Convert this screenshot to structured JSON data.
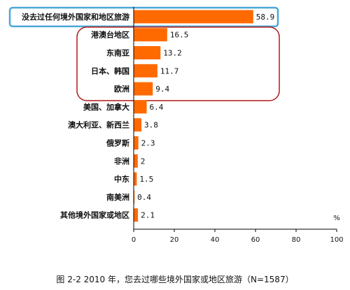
{
  "chart_data": {
    "type": "bar",
    "orientation": "horizontal",
    "categories": [
      "没去过任何境外国家和地区旅游",
      "港澳台地区",
      "东南亚",
      "日本、韩国",
      "欧洲",
      "美国、加拿大",
      "澳大利亚、新西兰",
      "俄罗斯",
      "非洲",
      "中东",
      "南美洲",
      "其他境外国家或地区"
    ],
    "values": [
      58.9,
      16.5,
      13.2,
      11.7,
      9.4,
      6.4,
      3.8,
      2.3,
      2,
      1.5,
      0.4,
      2.1
    ],
    "value_labels": [
      "58.9",
      "16.5",
      "13.2",
      "11.7",
      "9.4",
      "6.4",
      "3.8",
      "2.3",
      "2",
      "1.5",
      "0.4",
      "2.1"
    ],
    "xticks": [
      "0",
      "20",
      "40",
      "60",
      "80",
      "100"
    ],
    "xlim": [
      0,
      100
    ],
    "unit": "%",
    "caption": "图 2-2    2010 年，您去过哪些境外国家或地区旅游（N=1587）",
    "grid": false,
    "legend": "none",
    "highlight_boxes": [
      {
        "categories": [
          0
        ],
        "color": "#4aa8d8"
      },
      {
        "categories": [
          1,
          2,
          3,
          4
        ],
        "color": "#b01818"
      }
    ]
  },
  "colors": {
    "bar": "#ff6a00",
    "axis": "#000000",
    "text": "#111111"
  }
}
